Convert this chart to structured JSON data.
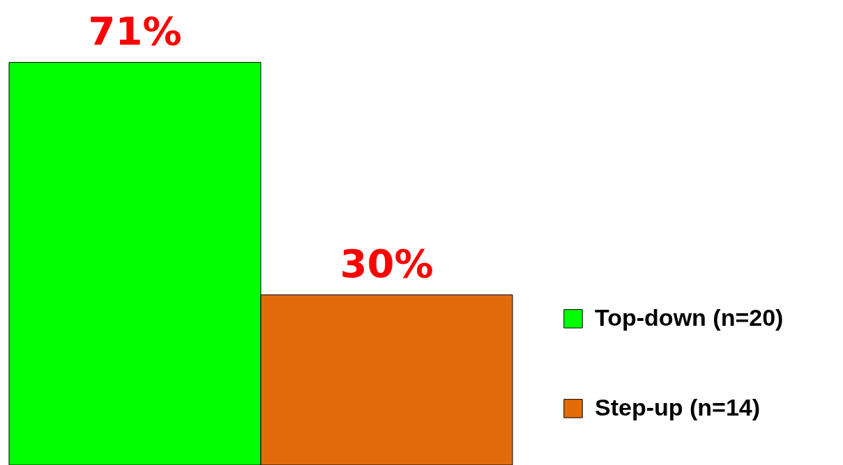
{
  "chart_data": {
    "type": "bar",
    "categories": [
      null
    ],
    "series": [
      {
        "name": "Top-down (n=20)",
        "color": "#00ff00",
        "values": [
          71
        ],
        "value_labels": [
          "71%"
        ]
      },
      {
        "name": "Step-up (n=14)",
        "color": "#e36c0a",
        "values": [
          30
        ],
        "value_labels": [
          "30%"
        ]
      }
    ],
    "ylim": [
      0,
      82
    ],
    "legend": "right"
  }
}
